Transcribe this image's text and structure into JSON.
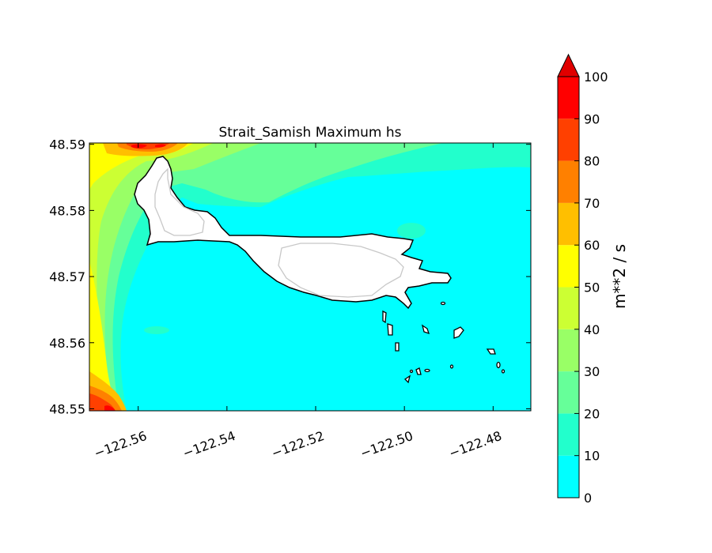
{
  "chart_data": {
    "type": "heatmap",
    "title": "Strait_Samish Maximum hs",
    "xlabel": "",
    "ylabel": "",
    "xlim": [
      -122.571,
      -122.4715
    ],
    "ylim": [
      48.5497,
      48.5902
    ],
    "x_ticks": [
      -122.56,
      -122.54,
      -122.52,
      -122.5,
      -122.48
    ],
    "x_tick_labels": [
      "−122.56",
      "−122.54",
      "−122.52",
      "−122.50",
      "−122.48"
    ],
    "y_ticks": [
      48.59,
      48.58,
      48.57,
      48.56,
      48.55
    ],
    "y_tick_labels": [
      "48.59",
      "48.58",
      "48.57",
      "48.56",
      "48.55"
    ],
    "grid": false,
    "colorbar": {
      "label": "m**2 / s",
      "extend": "max",
      "levels": [
        0,
        10,
        20,
        30,
        40,
        50,
        60,
        70,
        80,
        90,
        100
      ],
      "tick_labels": [
        "0",
        "10",
        "20",
        "30",
        "40",
        "50",
        "60",
        "70",
        "80",
        "90",
        "100"
      ],
      "colors": [
        "#00ffff",
        "#22ffcc",
        "#66ff99",
        "#99ff66",
        "#ccff33",
        "#ffff00",
        "#ffbf00",
        "#ff8000",
        "#ff4000",
        "#ff0000"
      ],
      "extend_color": "#e00000"
    },
    "land_color": "#ffffff",
    "coastline_color": "#000000",
    "depth_contour_color": "#c8c8c8",
    "max_values": {
      "open_water": 5,
      "northwest_corner": 94,
      "southwest_corner": 96,
      "west_edge_mid": 52,
      "north_strait": 25
    }
  }
}
